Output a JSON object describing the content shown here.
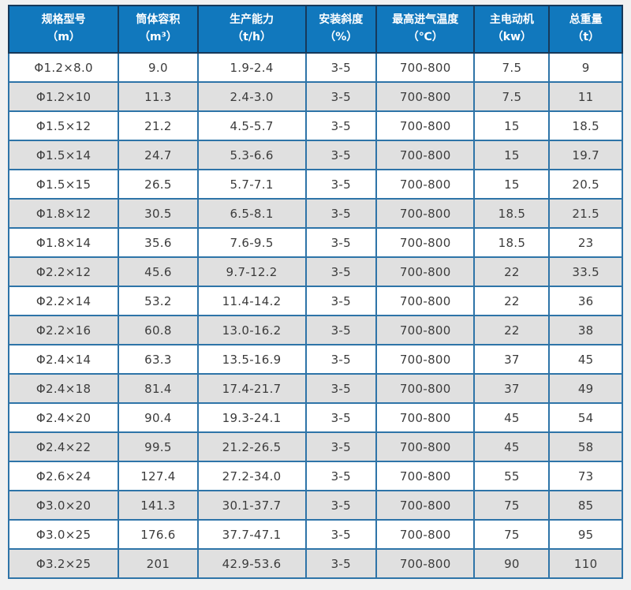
{
  "colors": {
    "page_bg": "#f1f1f1",
    "header_bg": "#1178bd",
    "header_text": "#ffffff",
    "header_border": "#17395a",
    "body_border": "#2e74a8",
    "row_bg": "#ffffff",
    "row_alt_bg": "#e0e0e0",
    "cell_text": "#3c3c3c"
  },
  "table": {
    "columns": [
      {
        "label": "规格型号",
        "unit": "（m）"
      },
      {
        "label": "筒体容积",
        "unit": "（m³）"
      },
      {
        "label": "生产能力",
        "unit": "（t/h）"
      },
      {
        "label": "安装斜度",
        "unit": "（%）"
      },
      {
        "label": "最高进气温度",
        "unit": "（℃）"
      },
      {
        "label": "主电动机",
        "unit": "（kw）"
      },
      {
        "label": "总重量",
        "unit": "（t）"
      }
    ],
    "rows": [
      [
        "Φ1.2×8.0",
        "9.0",
        "1.9-2.4",
        "3-5",
        "700-800",
        "7.5",
        "9"
      ],
      [
        "Φ1.2×10",
        "11.3",
        "2.4-3.0",
        "3-5",
        "700-800",
        "7.5",
        "11"
      ],
      [
        "Φ1.5×12",
        "21.2",
        "4.5-5.7",
        "3-5",
        "700-800",
        "15",
        "18.5"
      ],
      [
        "Φ1.5×14",
        "24.7",
        "5.3-6.6",
        "3-5",
        "700-800",
        "15",
        "19.7"
      ],
      [
        "Φ1.5×15",
        "26.5",
        "5.7-7.1",
        "3-5",
        "700-800",
        "15",
        "20.5"
      ],
      [
        "Φ1.8×12",
        "30.5",
        "6.5-8.1",
        "3-5",
        "700-800",
        "18.5",
        "21.5"
      ],
      [
        "Φ1.8×14",
        "35.6",
        "7.6-9.5",
        "3-5",
        "700-800",
        "18.5",
        "23"
      ],
      [
        "Φ2.2×12",
        "45.6",
        "9.7-12.2",
        "3-5",
        "700-800",
        "22",
        "33.5"
      ],
      [
        "Φ2.2×14",
        "53.2",
        "11.4-14.2",
        "3-5",
        "700-800",
        "22",
        "36"
      ],
      [
        "Φ2.2×16",
        "60.8",
        "13.0-16.2",
        "3-5",
        "700-800",
        "22",
        "38"
      ],
      [
        "Φ2.4×14",
        "63.3",
        "13.5-16.9",
        "3-5",
        "700-800",
        "37",
        "45"
      ],
      [
        "Φ2.4×18",
        "81.4",
        "17.4-21.7",
        "3-5",
        "700-800",
        "37",
        "49"
      ],
      [
        "Φ2.4×20",
        "90.4",
        "19.3-24.1",
        "3-5",
        "700-800",
        "45",
        "54"
      ],
      [
        "Φ2.4×22",
        "99.5",
        "21.2-26.5",
        "3-5",
        "700-800",
        "45",
        "58"
      ],
      [
        "Φ2.6×24",
        "127.4",
        "27.2-34.0",
        "3-5",
        "700-800",
        "55",
        "73"
      ],
      [
        "Φ3.0×20",
        "141.3",
        "30.1-37.7",
        "3-5",
        "700-800",
        "75",
        "85"
      ],
      [
        "Φ3.0×25",
        "176.6",
        "37.7-47.1",
        "3-5",
        "700-800",
        "75",
        "95"
      ],
      [
        "Φ3.2×25",
        "201",
        "42.9-53.6",
        "3-5",
        "700-800",
        "90",
        "110"
      ]
    ]
  }
}
